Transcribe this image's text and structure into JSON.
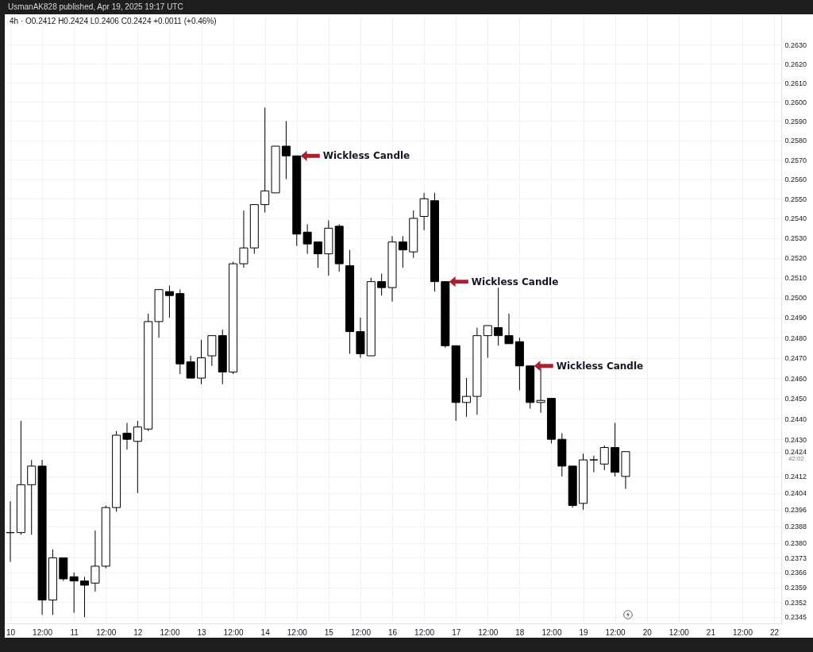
{
  "chart_data": {
    "type": "candlestick",
    "title": "UsmanAK828 published, Apr 19, 2025 19:17 UTC",
    "subtitle": "4h · O0.2412 H0.2424 L0.2406 C0.2424 +0.0011 (+0.46%)",
    "x": [
      "2025-04-10T00:00",
      "2025-04-10T04:00",
      "2025-04-10T08:00",
      "2025-04-10T12:00",
      "2025-04-10T16:00",
      "2025-04-10T20:00",
      "2025-04-11T00:00",
      "2025-04-11T04:00",
      "2025-04-11T08:00",
      "2025-04-11T12:00",
      "2025-04-11T16:00",
      "2025-04-11T20:00",
      "2025-04-12T00:00",
      "2025-04-12T04:00",
      "2025-04-12T08:00",
      "2025-04-12T12:00",
      "2025-04-12T16:00",
      "2025-04-12T20:00",
      "2025-04-13T00:00",
      "2025-04-13T04:00",
      "2025-04-13T08:00",
      "2025-04-13T12:00",
      "2025-04-13T16:00",
      "2025-04-13T20:00",
      "2025-04-14T00:00",
      "2025-04-14T04:00",
      "2025-04-14T08:00",
      "2025-04-14T12:00",
      "2025-04-14T16:00",
      "2025-04-14T20:00",
      "2025-04-15T00:00",
      "2025-04-15T04:00",
      "2025-04-15T08:00",
      "2025-04-15T12:00",
      "2025-04-15T16:00",
      "2025-04-15T20:00",
      "2025-04-16T00:00",
      "2025-04-16T04:00",
      "2025-04-16T08:00",
      "2025-04-16T12:00",
      "2025-04-16T16:00",
      "2025-04-16T20:00",
      "2025-04-17T00:00",
      "2025-04-17T04:00",
      "2025-04-17T08:00",
      "2025-04-17T12:00",
      "2025-04-17T16:00",
      "2025-04-17T20:00",
      "2025-04-18T00:00",
      "2025-04-18T04:00",
      "2025-04-18T08:00",
      "2025-04-18T12:00",
      "2025-04-18T16:00",
      "2025-04-18T20:00",
      "2025-04-19T00:00",
      "2025-04-19T04:00",
      "2025-04-19T08:00",
      "2025-04-19T12:00",
      "2025-04-19T16:00"
    ],
    "ohlc": [
      [
        0.2385,
        0.24,
        0.2371,
        0.2385
      ],
      [
        0.2385,
        0.2439,
        0.2384,
        0.2408
      ],
      [
        0.2408,
        0.242,
        0.2384,
        0.2417
      ],
      [
        0.2417,
        0.242,
        0.2346,
        0.2353
      ],
      [
        0.2353,
        0.2377,
        0.2346,
        0.2373
      ],
      [
        0.2373,
        0.2373,
        0.2362,
        0.2363
      ],
      [
        0.2364,
        0.2366,
        0.2347,
        0.2362
      ],
      [
        0.2362,
        0.2364,
        0.2345,
        0.236
      ],
      [
        0.2361,
        0.2386,
        0.2357,
        0.2369
      ],
      [
        0.2369,
        0.2398,
        0.2368,
        0.2397
      ],
      [
        0.2397,
        0.2434,
        0.2395,
        0.2432
      ],
      [
        0.2433,
        0.2438,
        0.2425,
        0.243
      ],
      [
        0.2429,
        0.2439,
        0.2404,
        0.2436
      ],
      [
        0.2435,
        0.2492,
        0.2434,
        0.2488
      ],
      [
        0.2488,
        0.2504,
        0.248,
        0.2504
      ],
      [
        0.2503,
        0.2506,
        0.249,
        0.2501
      ],
      [
        0.2502,
        0.2504,
        0.2462,
        0.2467
      ],
      [
        0.2468,
        0.2471,
        0.246,
        0.246
      ],
      [
        0.246,
        0.2479,
        0.2457,
        0.247
      ],
      [
        0.2471,
        0.2481,
        0.2466,
        0.2481
      ],
      [
        0.2481,
        0.2484,
        0.2457,
        0.2463
      ],
      [
        0.2463,
        0.2518,
        0.2462,
        0.2517
      ],
      [
        0.2517,
        0.2544,
        0.2515,
        0.2525
      ],
      [
        0.2525,
        0.2547,
        0.2522,
        0.2547
      ],
      [
        0.2547,
        0.2597,
        0.2543,
        0.2554
      ],
      [
        0.2553,
        0.2577,
        0.2553,
        0.2577
      ],
      [
        0.2577,
        0.259,
        0.256,
        0.2572
      ],
      [
        0.2572,
        0.2572,
        0.2526,
        0.2532
      ],
      [
        0.2533,
        0.2537,
        0.2522,
        0.2527
      ],
      [
        0.2528,
        0.2528,
        0.2515,
        0.2522
      ],
      [
        0.2522,
        0.2539,
        0.2511,
        0.2535
      ],
      [
        0.2536,
        0.2537,
        0.2513,
        0.2517
      ],
      [
        0.2516,
        0.2524,
        0.2472,
        0.2483
      ],
      [
        0.2483,
        0.249,
        0.247,
        0.2472
      ],
      [
        0.2471,
        0.251,
        0.2471,
        0.2508
      ],
      [
        0.2508,
        0.2512,
        0.2501,
        0.2505
      ],
      [
        0.2505,
        0.2531,
        0.2498,
        0.2528
      ],
      [
        0.2528,
        0.2531,
        0.2515,
        0.2524
      ],
      [
        0.2523,
        0.2544,
        0.252,
        0.254
      ],
      [
        0.2541,
        0.2553,
        0.2534,
        0.255
      ],
      [
        0.2549,
        0.2553,
        0.2503,
        0.2508
      ],
      [
        0.2508,
        0.2508,
        0.2475,
        0.2476
      ],
      [
        0.2476,
        0.2476,
        0.2439,
        0.2448
      ],
      [
        0.2448,
        0.246,
        0.2441,
        0.2451
      ],
      [
        0.2451,
        0.2485,
        0.2442,
        0.2481
      ],
      [
        0.2481,
        0.2486,
        0.247,
        0.2486
      ],
      [
        0.2485,
        0.2505,
        0.2476,
        0.2481
      ],
      [
        0.2481,
        0.2492,
        0.2477,
        0.2477
      ],
      [
        0.2478,
        0.248,
        0.2454,
        0.2466
      ],
      [
        0.2466,
        0.2466,
        0.2445,
        0.2448
      ],
      [
        0.2448,
        0.2465,
        0.2443,
        0.2449
      ],
      [
        0.245,
        0.245,
        0.2428,
        0.243
      ],
      [
        0.243,
        0.2433,
        0.2412,
        0.2417
      ],
      [
        0.2417,
        0.2417,
        0.2397,
        0.2398
      ],
      [
        0.2399,
        0.2423,
        0.2396,
        0.242
      ],
      [
        0.242,
        0.2422,
        0.2414,
        0.242
      ],
      [
        0.2418,
        0.2427,
        0.2415,
        0.2426
      ],
      [
        0.2426,
        0.2438,
        0.2412,
        0.2414
      ],
      [
        0.2412,
        0.2424,
        0.2406,
        0.2424
      ]
    ],
    "xlim": [
      "2025-04-09T23:24",
      "2025-04-22T01:11"
    ],
    "xticks": [
      {
        "value": "2025-04-10T00:00",
        "label": "10"
      },
      {
        "value": "2025-04-10T12:00",
        "label": "12:00"
      },
      {
        "value": "2025-04-11T00:00",
        "label": "11"
      },
      {
        "value": "2025-04-11T12:00",
        "label": "12:00"
      },
      {
        "value": "2025-04-12T00:00",
        "label": "12"
      },
      {
        "value": "2025-04-12T12:00",
        "label": "12:00"
      },
      {
        "value": "2025-04-13T00:00",
        "label": "13"
      },
      {
        "value": "2025-04-13T12:00",
        "label": "12:00"
      },
      {
        "value": "2025-04-14T00:00",
        "label": "14"
      },
      {
        "value": "2025-04-14T12:00",
        "label": "12:00"
      },
      {
        "value": "2025-04-15T00:00",
        "label": "15"
      },
      {
        "value": "2025-04-15T12:00",
        "label": "12:00"
      },
      {
        "value": "2025-04-16T00:00",
        "label": "16"
      },
      {
        "value": "2025-04-16T12:00",
        "label": "12:00"
      },
      {
        "value": "2025-04-17T00:00",
        "label": "17"
      },
      {
        "value": "2025-04-17T12:00",
        "label": "12:00"
      },
      {
        "value": "2025-04-18T00:00",
        "label": "18"
      },
      {
        "value": "2025-04-18T12:00",
        "label": "12:00"
      },
      {
        "value": "2025-04-19T00:00",
        "label": "19"
      },
      {
        "value": "2025-04-19T12:00",
        "label": "12:00"
      },
      {
        "value": "2025-04-20T00:00",
        "label": "20"
      },
      {
        "value": "2025-04-20T12:00",
        "label": "12:00"
      },
      {
        "value": "2025-04-21T00:00",
        "label": "21"
      },
      {
        "value": "2025-04-21T12:00",
        "label": "12:00"
      },
      {
        "value": "2025-04-22T00:00",
        "label": "22"
      }
    ],
    "ylim": [
      0.2342,
      0.2646
    ],
    "yticks": [
      0.2345,
      0.2352,
      0.2359,
      0.2366,
      0.2373,
      {
        "value": 0.238,
        "label": "0.2380"
      },
      0.2388,
      0.2396,
      0.2404,
      0.2412,
      0.2424,
      {
        "value": 0.243,
        "label": "0.2430"
      },
      {
        "value": 0.244,
        "label": "0.2440"
      },
      {
        "value": 0.245,
        "label": "0.2450"
      },
      {
        "value": 0.246,
        "label": "0.2460"
      },
      {
        "value": 0.247,
        "label": "0.2470"
      },
      {
        "value": 0.248,
        "label": "0.2480"
      },
      {
        "value": 0.249,
        "label": "0.2490"
      },
      {
        "value": 0.25,
        "label": "0.2500"
      },
      {
        "value": 0.251,
        "label": "0.2510"
      },
      {
        "value": 0.252,
        "label": "0.2520"
      },
      {
        "value": 0.253,
        "label": "0.2530"
      },
      {
        "value": 0.254,
        "label": "0.2540"
      },
      {
        "value": 0.255,
        "label": "0.2550"
      },
      {
        "value": 0.256,
        "label": "0.2560"
      },
      {
        "value": 0.257,
        "label": "0.2570"
      },
      {
        "value": 0.258,
        "label": "0.2580"
      },
      {
        "value": 0.259,
        "label": "0.2590"
      },
      {
        "value": 0.26,
        "label": "0.2600"
      },
      {
        "value": 0.261,
        "label": "0.2610"
      },
      {
        "value": 0.262,
        "label": "0.2620"
      },
      {
        "value": 0.263,
        "label": "0.2630"
      }
    ],
    "log": true,
    "grid": true,
    "annotations": [
      {
        "text": "Wickless Candle",
        "x": "2025-04-14T12:00",
        "y": 0.2572
      },
      {
        "text": "Wickless Candle",
        "x": "2025-04-16T20:00",
        "y": 0.2508
      },
      {
        "text": "Wickless Candle",
        "x": "2025-04-18T04:00",
        "y": 0.2466
      },
      "42:02"
    ]
  }
}
